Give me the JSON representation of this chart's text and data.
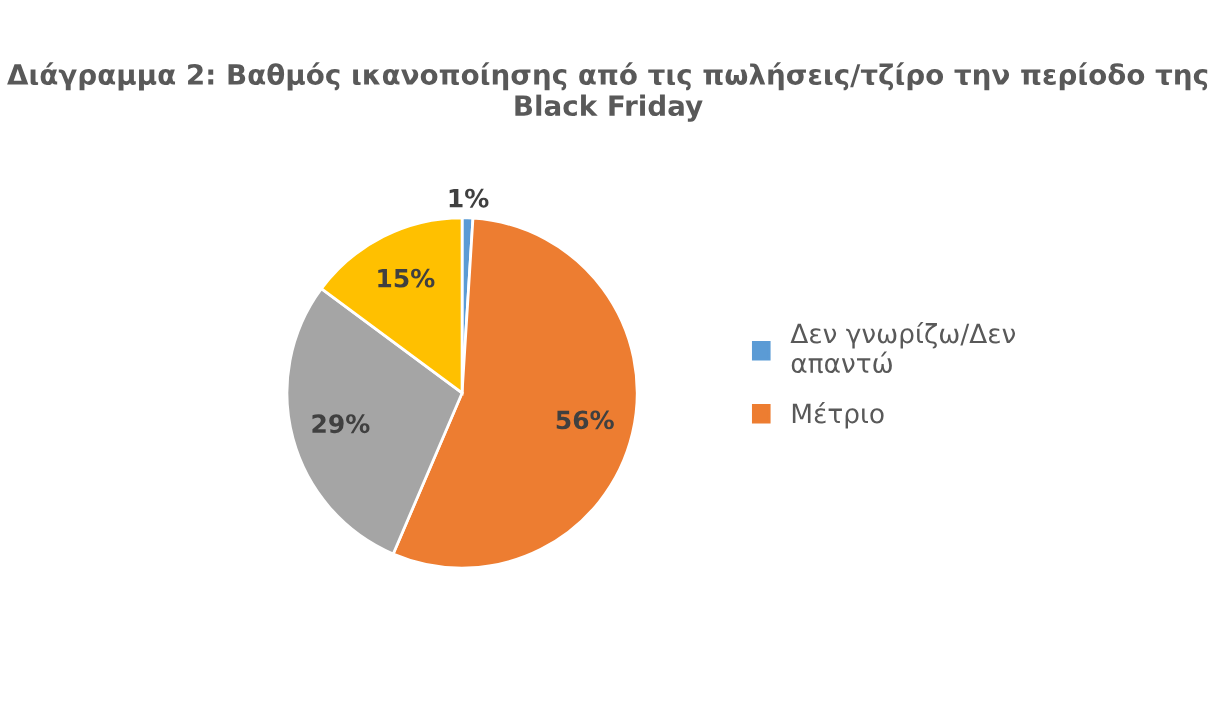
{
  "chart_data": {
    "type": "pie",
    "title": "Διάγραμμα 2: Βαθμός ικανοποίησης από τις πωλήσεις/τζίρο την περίοδο της Black Friday",
    "categories": [
      "Δεν γνωρίζω/Δεν απαντώ",
      "Μέτριο",
      null,
      null
    ],
    "values": [
      1,
      56,
      29,
      15
    ],
    "colors": [
      "#5b9bd5",
      "#ed7d31",
      "#a5a5a5",
      "#ffc000"
    ],
    "value_labels": [
      "1%",
      "56%",
      "29%",
      "15%"
    ],
    "legend": "right"
  }
}
